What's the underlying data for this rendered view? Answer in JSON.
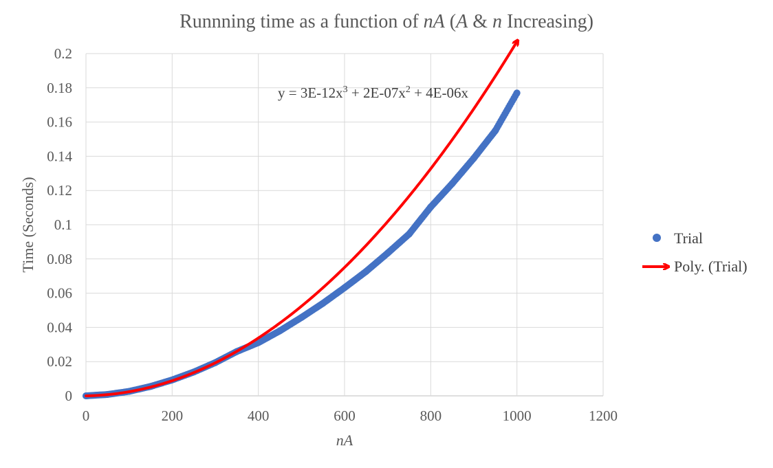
{
  "chart_data": {
    "type": "scatter",
    "title_parts": [
      {
        "text": "Runnning time as a function of ",
        "italic": false
      },
      {
        "text": "nA",
        "italic": true
      },
      {
        "text": " (",
        "italic": false
      },
      {
        "text": "A",
        "italic": true
      },
      {
        "text": " & ",
        "italic": false
      },
      {
        "text": "n",
        "italic": true
      },
      {
        "text": " Increasing)",
        "italic": false
      }
    ],
    "xlabel": "nA",
    "ylabel": "Time (Seconds)",
    "xlim": [
      0,
      1200
    ],
    "ylim": [
      0,
      0.2
    ],
    "x_ticks": [
      "0",
      "200",
      "400",
      "600",
      "800",
      "1000",
      "1200"
    ],
    "y_ticks": [
      "0",
      "0.02",
      "0.04",
      "0.06",
      "0.08",
      "0.1",
      "0.12",
      "0.14",
      "0.16",
      "0.18",
      "0.2"
    ],
    "grid": true,
    "legend_position": "right",
    "series": [
      {
        "name": "Trial",
        "kind": "scatter",
        "color": "#4472C4",
        "x": [
          0,
          50,
          100,
          150,
          200,
          250,
          300,
          350,
          400,
          450,
          500,
          550,
          600,
          650,
          700,
          750,
          800,
          850,
          900,
          950,
          1000
        ],
        "y": [
          0,
          0.0008,
          0.0026,
          0.0055,
          0.0093,
          0.0139,
          0.0194,
          0.0259,
          0.0311,
          0.038,
          0.0458,
          0.0541,
          0.0632,
          0.0727,
          0.0834,
          0.0946,
          0.1104,
          0.1241,
          0.1389,
          0.155,
          0.177
        ]
      },
      {
        "name": "Poly. (Trial)",
        "kind": "trendline",
        "color": "#FF0000",
        "coefficients": {
          "a3": 3e-12,
          "a2": 2e-07,
          "a1": 4e-06
        }
      }
    ],
    "equation": {
      "parts": [
        {
          "text": "y = 3E-12x",
          "sup": false
        },
        {
          "text": "3",
          "sup": true
        },
        {
          "text": " + 2E-07x",
          "sup": false
        },
        {
          "text": "2",
          "sup": true
        },
        {
          "text": " + 4E-06x",
          "sup": false
        }
      ]
    }
  }
}
